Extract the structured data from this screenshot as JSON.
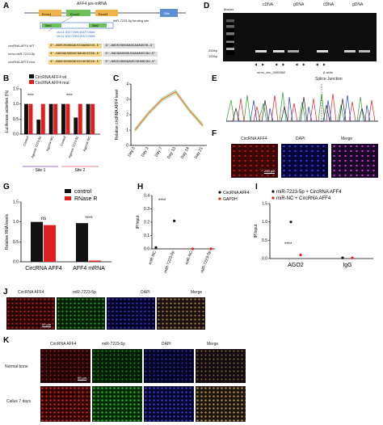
{
  "panels": {
    "A": {
      "label": "A",
      "title": "AFF4 pre-mRNA",
      "exons": [
        "Exon1",
        "Exon2",
        "Exon3"
      ],
      "site_box": "Site",
      "binding_site": "miR-7223-5p binding site",
      "sites": [
        "Site1",
        "Site2"
      ],
      "coords": [
        "chr11:53272660|53272666",
        "chr11:53272651|53272658"
      ],
      "rows": [
        {
          "name": "circRNA AFF4 WT",
          "seq": "3'-AGUCUGUGGAUCCAAAGCUU-5'",
          "mir": "3'-AGUCUGUGGAUCAAAGCUG-3'"
        },
        {
          "name": "mmu-miR-7223-5p",
          "seq": "3'-GACGAUUGGUCGAUAUCCGU-5'",
          "mir": "3'-GACGAUUGGUCGAUAUCCGU-5'"
        },
        {
          "name": "circRNA AFF4 mut",
          "seq": "3'-AGUCUGUGGAUCCUUUGCGU-5'",
          "mir": "3'-AGUCUGUGGAUCCUUUGCGU-3'"
        }
      ]
    },
    "B": {
      "label": "B",
      "legend": [
        "CircRNA AFF4 wt",
        "CircRNA AFF4 mut"
      ],
      "ylabel": "Luciferase activities (%)",
      "yticks": [
        "0.0",
        "0.5",
        "1.0",
        "1.5"
      ],
      "categories": [
        "Control",
        "Agomir-7223-5p",
        "Agomir-NC",
        "Control",
        "Agomir-7223-5p",
        "Agomir-NC"
      ],
      "groups": [
        "Site 1",
        "Site 2"
      ],
      "stars": "****"
    },
    "C": {
      "label": "C",
      "ylabel": "Relative circRNA AFF4 level",
      "yticks": [
        "0",
        "1",
        "2",
        "3",
        "4"
      ],
      "xticks": [
        "Day 0",
        "Day 3",
        "Day 7",
        "Day 10",
        "Day 14",
        "Day 21"
      ]
    },
    "D": {
      "label": "D",
      "marker": "Marker",
      "lanes": [
        "cDNA",
        "gDNA",
        "cDNA",
        "gDNA"
      ],
      "bp": [
        "250bp",
        "100bp"
      ],
      "genes": [
        "mmu_circ_0000562",
        "β-actin"
      ]
    },
    "E": {
      "label": "E",
      "title": "Splice Junction"
    },
    "F": {
      "label": "F",
      "titles": [
        "CircRNA AFF4",
        "DAPI",
        "Merge"
      ],
      "scale": "200 μm"
    },
    "G": {
      "label": "G",
      "legend": [
        "control",
        "RNase R"
      ],
      "ylabel": "Relative RNA levels",
      "yticks": [
        "0.0",
        "0.5",
        "1.0",
        "1.5"
      ],
      "categories": [
        "CircRNA AFF4",
        "AFF4 mRNA"
      ],
      "sig": [
        "ns",
        "****"
      ]
    },
    "H": {
      "label": "H",
      "legend": [
        "CircRNA AFF4",
        "GAPDH"
      ],
      "ylabel": "IP/input",
      "yticks": [
        "0.0",
        "0.1",
        "0.2",
        "0.3",
        "0.4"
      ],
      "xticks": [
        "miR-NC",
        "miR-7223-5p",
        "miR-NC",
        "miR-7223-5p"
      ],
      "stars": "****"
    },
    "I": {
      "label": "I",
      "legend": [
        "miR-7223-5p + CircRNA AFF4",
        "miR-NC + CircRNA AFF4"
      ],
      "ylabel": "IP/input",
      "yticks": [
        "0.0",
        "0.5",
        "1.0",
        "1.5"
      ],
      "categories": [
        "AGO2",
        "IgG"
      ],
      "stars": "****"
    },
    "J": {
      "label": "J",
      "titles": [
        "CircRNA AFF4",
        "miR-7223-5p",
        "DAPI",
        "Merge"
      ],
      "scale": "50 μm"
    },
    "K": {
      "label": "K",
      "titles": [
        "CircRNA AFF4",
        "miR-7223-5p",
        "DAPI",
        "Merge"
      ],
      "rows": [
        "Normal bone",
        "Callus 7 days"
      ],
      "scale": "50 μm"
    }
  },
  "chart_data": [
    {
      "panel": "B",
      "type": "bar",
      "categories": [
        "Control",
        "Agomir-7223-5p",
        "Agomir-NC",
        "Control",
        "Agomir-7223-5p",
        "Agomir-NC"
      ],
      "series": [
        {
          "name": "CircRNA AFF4 wt",
          "values": [
            1.0,
            0.48,
            1.0,
            1.0,
            0.55,
            1.0
          ]
        },
        {
          "name": "CircRNA AFF4 mut",
          "values": [
            1.0,
            1.0,
            1.0,
            1.0,
            1.0,
            1.0
          ]
        }
      ],
      "ylim": [
        0,
        1.5
      ]
    },
    {
      "panel": "C",
      "type": "line",
      "x": [
        "Day 0",
        "Day 3",
        "Day 7",
        "Day 10",
        "Day 14",
        "Day 21"
      ],
      "values": [
        1.0,
        2.1,
        3.0,
        3.5,
        2.3,
        1.3
      ],
      "ylim": [
        0,
        4
      ]
    },
    {
      "panel": "G",
      "type": "bar",
      "categories": [
        "CircRNA AFF4",
        "AFF4 mRNA"
      ],
      "series": [
        {
          "name": "control",
          "values": [
            1.0,
            0.97
          ]
        },
        {
          "name": "RNase R",
          "values": [
            0.92,
            0.03
          ]
        }
      ],
      "ylim": [
        0,
        1.5
      ]
    },
    {
      "panel": "H",
      "type": "scatter",
      "x": [
        "miR-NC",
        "miR-7223-5p",
        "miR-NC",
        "miR-7223-5p"
      ],
      "series": [
        {
          "name": "CircRNA AFF4",
          "values": [
            0.01,
            0.21,
            null,
            null
          ]
        },
        {
          "name": "GAPDH",
          "values": [
            null,
            null,
            0.0,
            0.0
          ]
        }
      ],
      "ylim": [
        0,
        0.4
      ]
    },
    {
      "panel": "I",
      "type": "scatter",
      "categories": [
        "AGO2",
        "IgG"
      ],
      "series": [
        {
          "name": "miR-7223-5p + CircRNA AFF4",
          "values": [
            1.0,
            0.02
          ]
        },
        {
          "name": "miR-NC + CircRNA AFF4",
          "values": [
            0.1,
            0.02
          ]
        }
      ],
      "ylim": [
        0,
        1.5
      ]
    }
  ]
}
